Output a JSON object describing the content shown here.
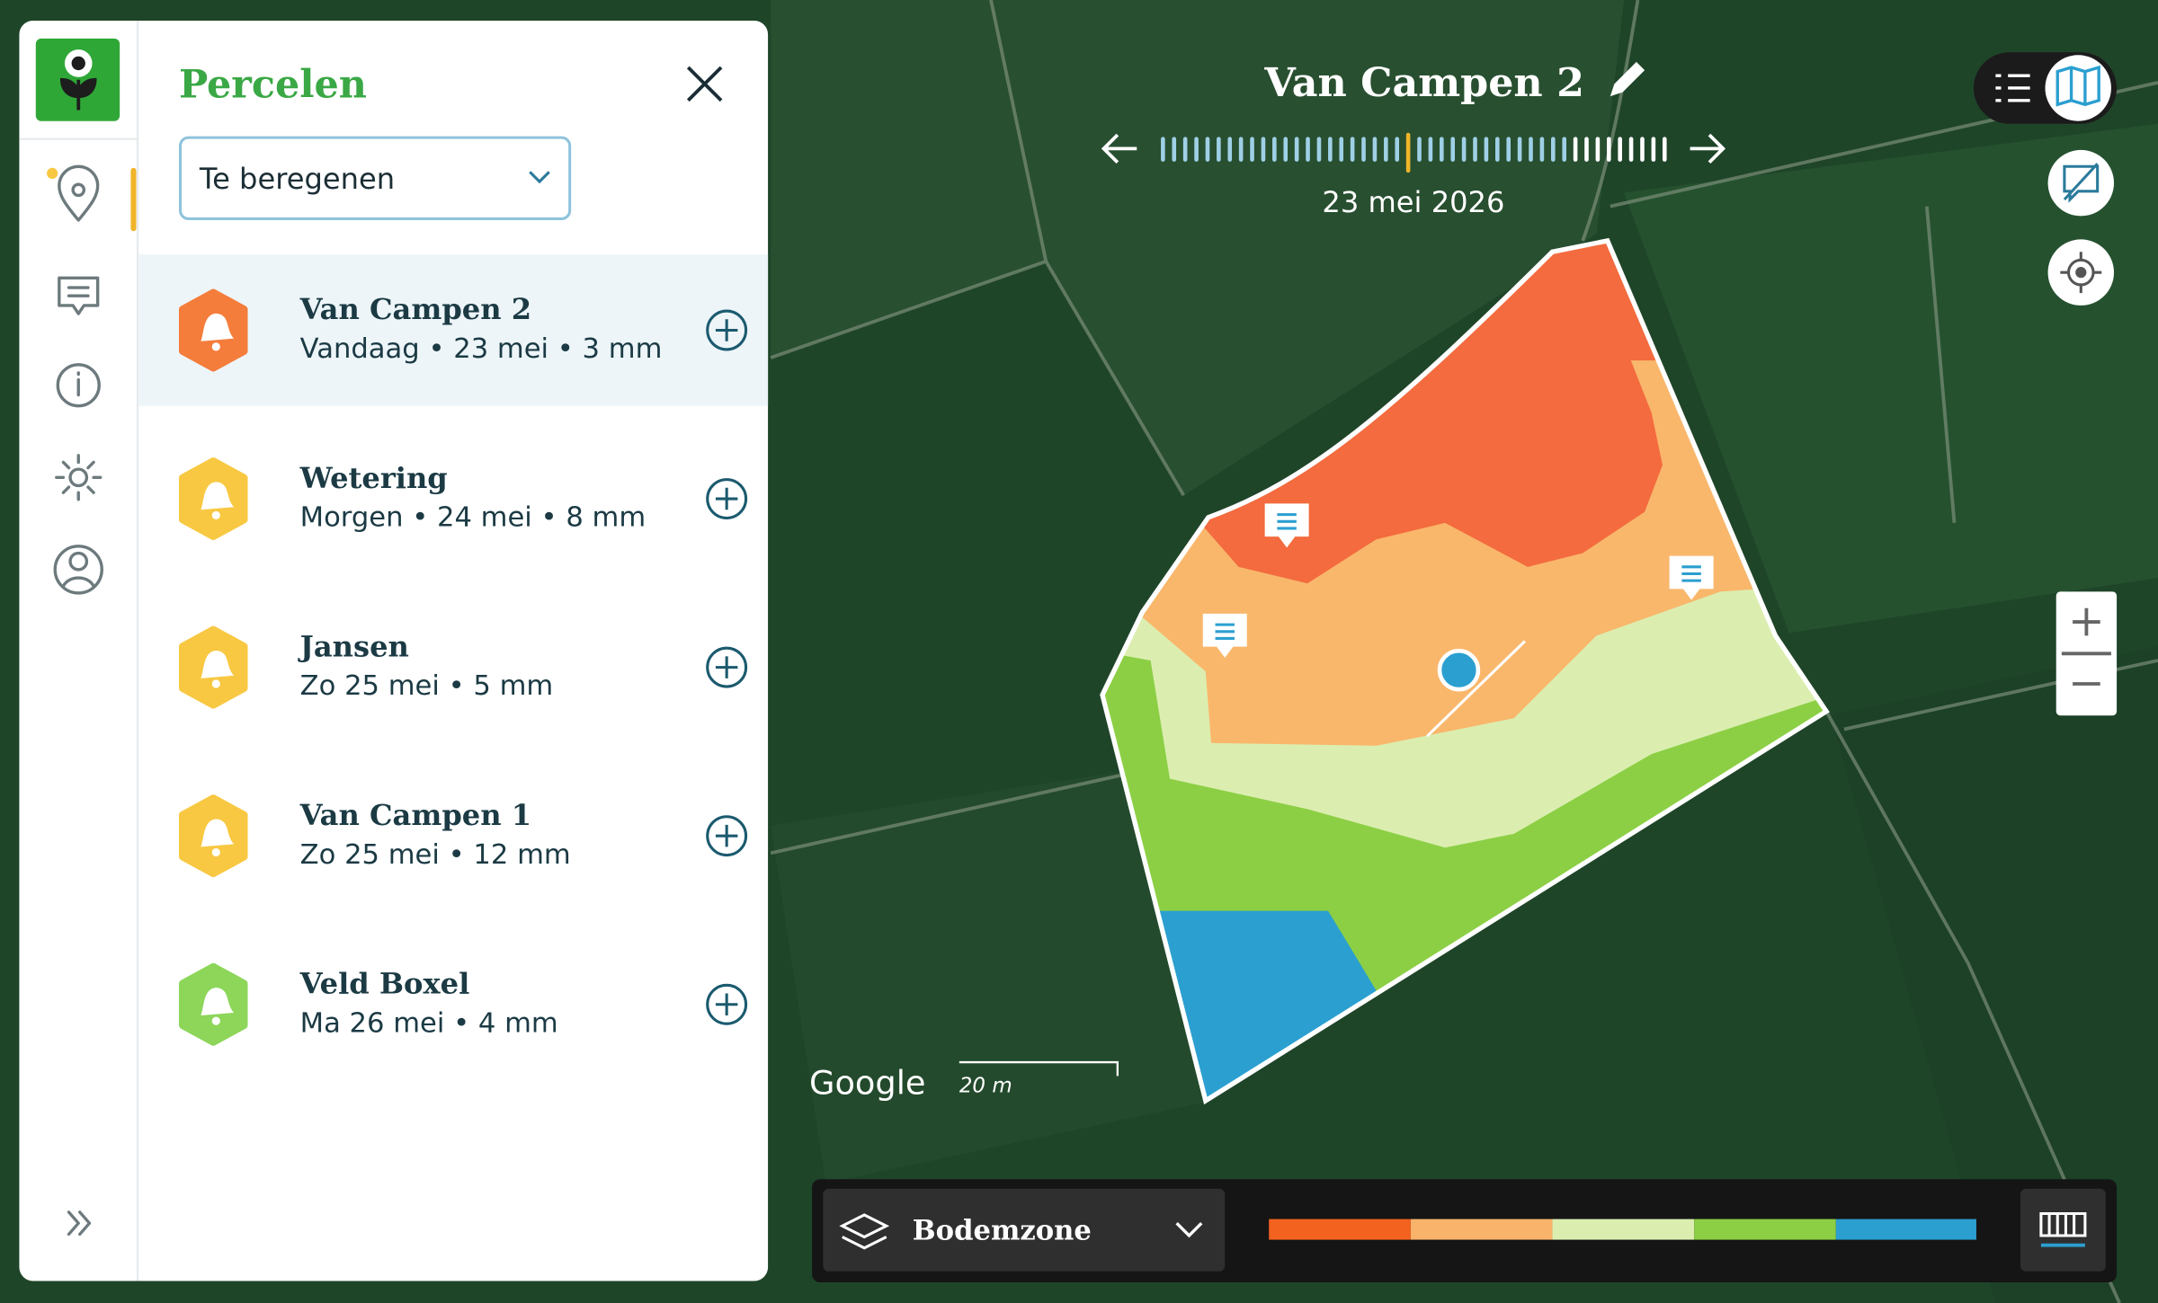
{
  "sidebar": {
    "title": "Percelen",
    "filter": "Te beregenen",
    "items": [
      {
        "name": "Van Campen 2",
        "detail": "Vandaag • 23 mei • 3 mm",
        "color": "#f47d3b"
      },
      {
        "name": "Wetering",
        "detail": "Morgen • 24 mei • 8 mm",
        "color": "#f8c842"
      },
      {
        "name": "Jansen",
        "detail": "Zo 25 mei • 5 mm",
        "color": "#f8c842"
      },
      {
        "name": "Van Campen 1",
        "detail": "Zo 25 mei • 12 mm",
        "color": "#f8c842"
      },
      {
        "name": "Veld Boxel",
        "detail": "Ma 26 mei • 4 mm",
        "color": "#8dd65a"
      }
    ]
  },
  "map": {
    "title": "Van Campen 2",
    "date": "23 mei 2026",
    "attribution": "Google",
    "scale": "20 m"
  },
  "layer": {
    "name": "Bodemzone"
  }
}
